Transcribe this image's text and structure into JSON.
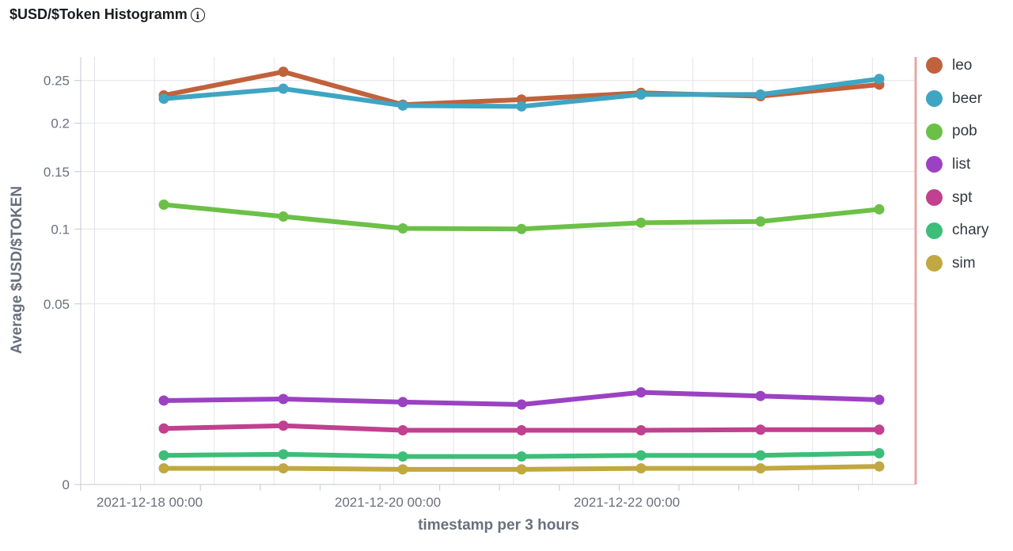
{
  "title": "$USD/$Token Histogramm",
  "info_icon": "info-icon",
  "chart_data": {
    "type": "line",
    "title": "$USD/$Token Histogramm",
    "xlabel": "timestamp per 3 hours",
    "ylabel": "Average $USD/$TOKEN",
    "y_scale": "sqrt",
    "ylim": [
      0,
      0.28
    ],
    "yticks": [
      0,
      0.05,
      0.1,
      0.15,
      0.2,
      0.25
    ],
    "ytick_labels": [
      "0",
      "0.05",
      "0.1",
      "0.15",
      "0.2",
      "0.25"
    ],
    "x_tick_labels": [
      "2021-12-18 00:00",
      "2021-12-20 00:00",
      "2021-12-22 00:00"
    ],
    "x": [
      "2021-12-18 03:00",
      "2021-12-19 03:00",
      "2021-12-20 03:00",
      "2021-12-21 03:00",
      "2021-12-22 03:00",
      "2021-12-23 03:00",
      "2021-12-24 03:00"
    ],
    "grid": true,
    "legend_position": "right",
    "series": [
      {
        "name": "leo",
        "color": "#c0623c",
        "values": [
          0.232,
          0.261,
          0.221,
          0.227,
          0.235,
          0.231,
          0.245
        ]
      },
      {
        "name": "beer",
        "color": "#3fa5c2",
        "values": [
          0.228,
          0.24,
          0.22,
          0.219,
          0.233,
          0.233,
          0.252
        ]
      },
      {
        "name": "pob",
        "color": "#6cc047",
        "values": [
          0.12,
          0.11,
          0.1005,
          0.1,
          0.105,
          0.106,
          0.116
        ]
      },
      {
        "name": "list",
        "color": "#9b42c2",
        "values": [
          0.0108,
          0.0112,
          0.0104,
          0.0098,
          0.013,
          0.012,
          0.011
        ]
      },
      {
        "name": "spt",
        "color": "#c1408f",
        "values": [
          0.0048,
          0.0053,
          0.0045,
          0.0045,
          0.0045,
          0.0046,
          0.0046
        ]
      },
      {
        "name": "chary",
        "color": "#3dbe78",
        "values": [
          0.0013,
          0.0014,
          0.0012,
          0.0012,
          0.0013,
          0.0013,
          0.0015
        ]
      },
      {
        "name": "sim",
        "color": "#c1a840",
        "values": [
          0.0004,
          0.0004,
          0.00035,
          0.00035,
          0.0004,
          0.0004,
          0.0005
        ]
      }
    ]
  }
}
